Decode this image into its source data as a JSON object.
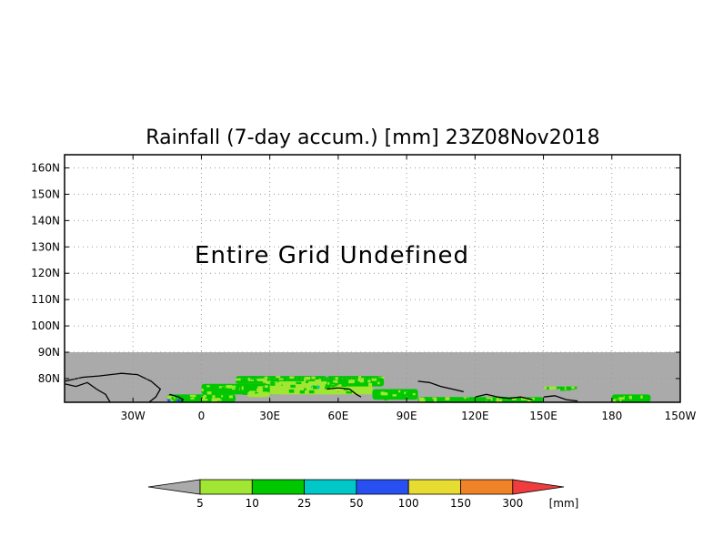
{
  "title": "Rainfall (7-day accum.) [mm] 23Z08Nov2018",
  "notice": "Entire Grid Undefined",
  "map": {
    "lon_range": [
      -60,
      210
    ],
    "lat_range": [
      71,
      165
    ],
    "undefined_lat_max": 90,
    "undefined_color": "#aaaaaa",
    "grid": true,
    "lat_ticks": [
      {
        "value": 160,
        "label": "160N"
      },
      {
        "value": 150,
        "label": "150N"
      },
      {
        "value": 140,
        "label": "140N"
      },
      {
        "value": 130,
        "label": "130N"
      },
      {
        "value": 120,
        "label": "120N"
      },
      {
        "value": 110,
        "label": "110N"
      },
      {
        "value": 100,
        "label": "100N"
      },
      {
        "value": 90,
        "label": "90N"
      },
      {
        "value": 80,
        "label": "80N"
      }
    ],
    "lon_ticks": [
      {
        "value": -30,
        "label": "30W"
      },
      {
        "value": 0,
        "label": "0"
      },
      {
        "value": 30,
        "label": "30E"
      },
      {
        "value": 60,
        "label": "60E"
      },
      {
        "value": 90,
        "label": "90E"
      },
      {
        "value": 120,
        "label": "120E"
      },
      {
        "value": 150,
        "label": "150E"
      },
      {
        "value": 180,
        "label": "180"
      },
      {
        "value": 210,
        "label": "150W"
      }
    ]
  },
  "legend": {
    "unit": "[mm]",
    "under_color": "#aaaaaa",
    "over_color": "#f03c3c",
    "bins": [
      {
        "color": "#a0e632",
        "label": "5"
      },
      {
        "color": "#00c800",
        "label": "10"
      },
      {
        "color": "#00c8c8",
        "label": "25"
      },
      {
        "color": "#2850f0",
        "label": "50"
      },
      {
        "color": "#e6dc32",
        "label": "100"
      },
      {
        "color": "#f08228",
        "label": "150"
      }
    ],
    "last_label": "300"
  },
  "rain_regions": [
    {
      "lon0": -15,
      "lon1": 15,
      "lat0": 71,
      "lat1": 74,
      "level": 1
    },
    {
      "lon0": 0,
      "lon1": 35,
      "lat0": 74,
      "lat1": 78,
      "level": 1
    },
    {
      "lon0": 15,
      "lon1": 55,
      "lat0": 78,
      "lat1": 81,
      "level": 1
    },
    {
      "lon0": 30,
      "lon1": 75,
      "lat0": 74,
      "lat1": 79,
      "level": 0
    },
    {
      "lon0": 55,
      "lon1": 80,
      "lat0": 77,
      "lat1": 81,
      "level": 1
    },
    {
      "lon0": 75,
      "lon1": 95,
      "lat0": 72,
      "lat1": 76,
      "level": 1
    },
    {
      "lon0": 95,
      "lon1": 125,
      "lat0": 71,
      "lat1": 73,
      "level": 1
    },
    {
      "lon0": 125,
      "lon1": 150,
      "lat0": 71,
      "lat1": 73,
      "level": 1
    },
    {
      "lon0": 150,
      "lon1": 165,
      "lat0": 76,
      "lat1": 77,
      "level": 0
    },
    {
      "lon0": 180,
      "lon1": 197,
      "lat0": 71,
      "lat1": 74,
      "level": 1
    },
    {
      "lon0": -15,
      "lon1": -9,
      "lat0": 71,
      "lat1": 73.5,
      "level": 3
    },
    {
      "lon0": 20,
      "lon1": 30,
      "lat0": 73,
      "lat1": 75,
      "level": 0
    },
    {
      "lon0": 48,
      "lon1": 52,
      "lat0": 76,
      "lat1": 77.5,
      "level": 2
    }
  ]
}
